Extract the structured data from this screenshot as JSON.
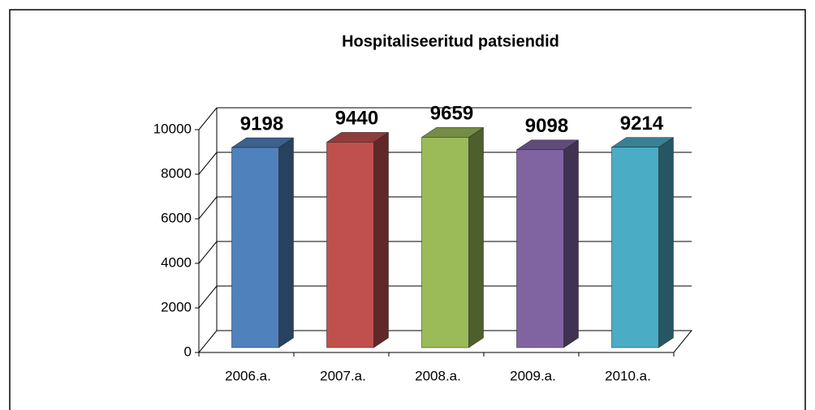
{
  "chart_data": {
    "type": "bar",
    "title": "Hospitaliseeritud patsiendid",
    "categories": [
      "2006.a.",
      "2007.a.",
      "2008.a.",
      "2009.a.",
      "2010.a."
    ],
    "values": [
      9198,
      9440,
      9659,
      9098,
      9214
    ],
    "colors": [
      "#4f81bd",
      "#c0504d",
      "#9bbb59",
      "#8064a2",
      "#4bacc6"
    ],
    "ylim": [
      0,
      10000
    ],
    "yticks": [
      0,
      2000,
      4000,
      6000,
      8000,
      10000
    ],
    "grid": true
  }
}
